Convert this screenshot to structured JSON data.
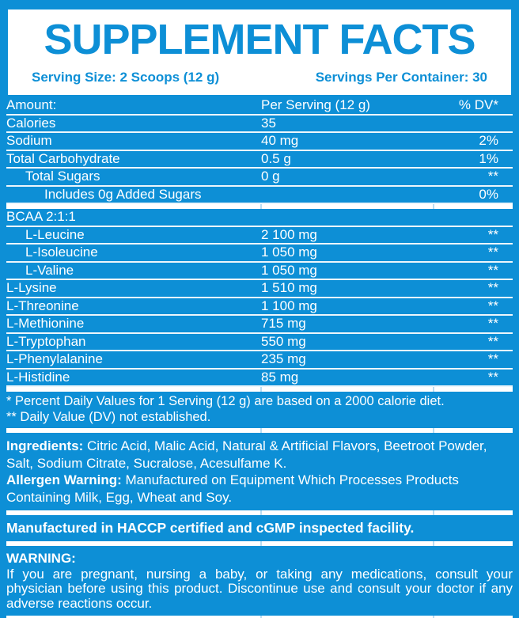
{
  "colors": {
    "background_blue": "#0d8fd6",
    "panel_white": "#ffffff",
    "separator_line": "#ffffff"
  },
  "header": {
    "title": "SUPPLEMENT FACTS",
    "serving_size": "Serving Size: 2 Scoops (12 g)",
    "servings_per_container": "Servings Per Container: 30"
  },
  "table": {
    "columns": [
      "Amount:",
      "Per Serving (12 g)",
      "% DV*"
    ],
    "rows": [
      {
        "name": "Calories",
        "amount": "35",
        "dv": "",
        "indent": 0
      },
      {
        "name": "Sodium",
        "amount": "40 mg",
        "dv": "2%",
        "indent": 0
      },
      {
        "name": "Total Carbohydrate",
        "amount": "0.5 g",
        "dv": "1%",
        "indent": 0
      },
      {
        "name": "Total Sugars",
        "amount": "0 g",
        "dv": "**",
        "indent": 1
      },
      {
        "name": "Includes 0g Added Sugars",
        "amount": "",
        "dv": "0%",
        "indent": 2
      },
      {
        "name": "BCAA 2:1:1",
        "amount": "",
        "dv": "",
        "indent": 0,
        "group_start": true
      },
      {
        "name": "L-Leucine",
        "amount": "2 100 mg",
        "dv": "**",
        "indent": 1
      },
      {
        "name": "L-Isoleucine",
        "amount": "1 050 mg",
        "dv": "**",
        "indent": 1
      },
      {
        "name": "L-Valine",
        "amount": "1 050 mg",
        "dv": "**",
        "indent": 1
      },
      {
        "name": "L-Lysine",
        "amount": "1 510 mg",
        "dv": "**",
        "indent": 0
      },
      {
        "name": "L-Threonine",
        "amount": "1 100 mg",
        "dv": "**",
        "indent": 0
      },
      {
        "name": "L-Methionine",
        "amount": "715 mg",
        "dv": "**",
        "indent": 0
      },
      {
        "name": "L-Tryptophan",
        "amount": "550 mg",
        "dv": "**",
        "indent": 0
      },
      {
        "name": "L-Phenylalanine",
        "amount": "235 mg",
        "dv": "**",
        "indent": 0
      },
      {
        "name": "L-Histidine",
        "amount": "85 mg",
        "dv": "**",
        "indent": 0
      }
    ]
  },
  "footnotes": [
    "* Percent Daily Values for 1 Serving (12 g) are based on a 2000 calorie diet.",
    "** Daily Value (DV) not established."
  ],
  "ingredients": {
    "label": "Ingredients:",
    "text": "Citric Acid, Malic Acid, Natural & Artificial Flavors, Beetroot Powder, Salt, Sodium Citrate, Sucralose, Acesulfame K."
  },
  "allergen": {
    "label": "Allergen Warning:",
    "text": "Manufactured on Equipment Which Processes Products Containing Milk, Egg, Wheat and Soy."
  },
  "facility_note": "Manufactured in HACCP certified and cGMP inspected facility.",
  "warning": {
    "label": "WARNING:",
    "text": "If you are pregnant, nursing a baby, or taking any medications, consult your physician before using this product. Discontinue use and consult your doctor if any adverse reactions occur."
  }
}
